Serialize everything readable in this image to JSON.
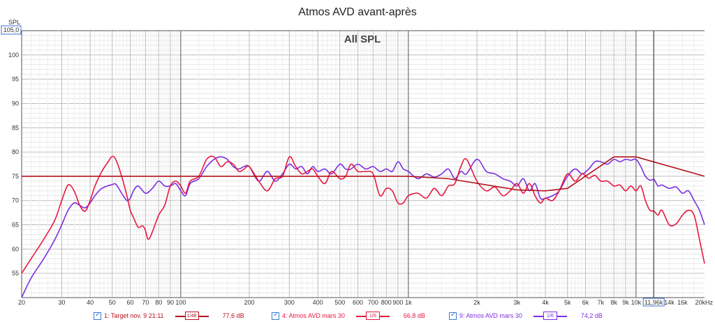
{
  "chart_data": {
    "type": "line",
    "title": "Atmos AVD avant-après",
    "subtitle": "All SPL",
    "ylabel": "SPL",
    "xunit": "Hz",
    "y_top_value": "105,0",
    "ylim": [
      50,
      105
    ],
    "xlim": [
      20,
      20000
    ],
    "xscale": "log",
    "grid": true,
    "cursor": {
      "x": 11960,
      "label": "11,96k"
    },
    "y_ticks": [
      {
        "v": 55,
        "label": "55"
      },
      {
        "v": 60,
        "label": "60"
      },
      {
        "v": 65,
        "label": "65"
      },
      {
        "v": 70,
        "label": "70"
      },
      {
        "v": 75,
        "label": "75"
      },
      {
        "v": 80,
        "label": "80"
      },
      {
        "v": 85,
        "label": "85"
      },
      {
        "v": 90,
        "label": "90"
      },
      {
        "v": 95,
        "label": "95"
      },
      {
        "v": 100,
        "label": "100"
      }
    ],
    "x_ticks": [
      {
        "v": 20,
        "label": "20"
      },
      {
        "v": 30,
        "label": "30"
      },
      {
        "v": 40,
        "label": "40"
      },
      {
        "v": 50,
        "label": "50"
      },
      {
        "v": 60,
        "label": "60"
      },
      {
        "v": 70,
        "label": "70"
      },
      {
        "v": 80,
        "label": "80"
      },
      {
        "v": 90,
        "label": "90"
      },
      {
        "v": 100,
        "label": "100"
      },
      {
        "v": 200,
        "label": "200"
      },
      {
        "v": 300,
        "label": "300"
      },
      {
        "v": 400,
        "label": "400"
      },
      {
        "v": 500,
        "label": "500"
      },
      {
        "v": 600,
        "label": "600"
      },
      {
        "v": 700,
        "label": "700"
      },
      {
        "v": 800,
        "label": "800"
      },
      {
        "v": 900,
        "label": "900"
      },
      {
        "v": 1000,
        "label": "1k"
      },
      {
        "v": 2000,
        "label": "2k"
      },
      {
        "v": 3000,
        "label": "3k"
      },
      {
        "v": 4000,
        "label": "4k"
      },
      {
        "v": 5000,
        "label": "5k"
      },
      {
        "v": 6000,
        "label": "6k"
      },
      {
        "v": 7000,
        "label": "7k"
      },
      {
        "v": 8000,
        "label": "8k"
      },
      {
        "v": 9000,
        "label": "9k"
      },
      {
        "v": 10000,
        "label": "10k"
      },
      {
        "v": 14000,
        "label": "14k"
      },
      {
        "v": 16000,
        "label": "16k"
      },
      {
        "v": 20000,
        "label": "20kHz"
      }
    ],
    "series": [
      {
        "name": "1: Target nov. 9 21:11",
        "smoothing": "1/48",
        "level": "77,6 dB",
        "color": "#b5121b",
        "x": [
          20,
          100,
          1000,
          1500,
          3000,
          4000,
          5000,
          8000,
          10000,
          20000
        ],
        "y": [
          75,
          75,
          75,
          74.5,
          72.2,
          72,
          72.5,
          79,
          79,
          75
        ]
      },
      {
        "name": "4: Atmos AVD mars 30",
        "smoothing": "1/6",
        "level": "66,8 dB",
        "color": "#e8173f",
        "x": [
          20,
          22,
          25,
          28,
          30,
          32,
          34,
          36,
          38,
          40,
          42,
          45,
          48,
          50,
          52,
          55,
          58,
          60,
          62,
          65,
          68,
          70,
          72,
          75,
          80,
          85,
          90,
          95,
          100,
          105,
          110,
          120,
          130,
          140,
          150,
          160,
          170,
          180,
          190,
          200,
          220,
          240,
          260,
          280,
          300,
          320,
          340,
          360,
          380,
          400,
          430,
          460,
          500,
          530,
          560,
          600,
          650,
          700,
          750,
          800,
          850,
          900,
          950,
          1000,
          1100,
          1200,
          1300,
          1400,
          1500,
          1600,
          1700,
          1800,
          2000,
          2200,
          2400,
          2600,
          2800,
          3000,
          3200,
          3400,
          3600,
          3800,
          4000,
          4300,
          4600,
          5000,
          5400,
          5800,
          6200,
          6600,
          7000,
          7500,
          8000,
          8500,
          9000,
          9500,
          10000,
          10500,
          11000,
          11500,
          12000,
          12500,
          13000,
          14000,
          15000,
          16000,
          17000,
          18000,
          19000,
          20000
        ],
        "y": [
          55,
          58,
          62,
          66,
          70,
          73.2,
          72,
          69,
          67.8,
          70,
          73,
          76,
          78,
          79.1,
          78.3,
          75,
          71,
          68,
          66.5,
          64.5,
          64.8,
          63.8,
          62,
          63.5,
          67,
          69,
          73,
          74,
          73,
          71.5,
          74,
          75,
          78.5,
          79,
          77,
          78,
          77.5,
          76,
          76.5,
          77,
          74,
          72,
          74.5,
          75,
          79,
          77,
          75.5,
          76,
          76.5,
          75,
          73.5,
          76,
          74.5,
          75,
          77.5,
          76,
          76,
          75.5,
          71,
          72.5,
          72,
          69.5,
          69.5,
          71,
          71.5,
          70.5,
          72.5,
          71,
          73,
          73.5,
          77,
          78.5,
          74,
          72,
          72.8,
          71,
          72,
          73.5,
          71.5,
          73.5,
          71,
          69.5,
          70.5,
          70,
          72,
          75.5,
          74,
          75.5,
          74.6,
          75.2,
          74,
          74,
          73,
          73.2,
          72,
          73,
          72,
          73,
          70,
          68,
          67.8,
          67,
          68,
          65,
          65.2,
          67,
          68,
          67,
          62,
          57
        ]
      },
      {
        "name": "9: Atmos AVD mars 30",
        "smoothing": "1/6",
        "level": "74,2 dB",
        "color": "#7b2fe0",
        "x": [
          20,
          22,
          25,
          28,
          30,
          32,
          34,
          36,
          38,
          40,
          42,
          45,
          50,
          52,
          55,
          58,
          60,
          62,
          65,
          70,
          75,
          80,
          85,
          90,
          95,
          100,
          105,
          110,
          120,
          130,
          140,
          150,
          160,
          170,
          180,
          190,
          200,
          220,
          240,
          260,
          280,
          300,
          320,
          340,
          360,
          380,
          400,
          430,
          460,
          500,
          530,
          560,
          600,
          650,
          700,
          750,
          800,
          850,
          900,
          950,
          1000,
          1100,
          1200,
          1300,
          1400,
          1500,
          1600,
          1700,
          1800,
          2000,
          2200,
          2400,
          2600,
          2800,
          3000,
          3200,
          3400,
          3600,
          3800,
          4000,
          4300,
          4600,
          5000,
          5400,
          5800,
          6200,
          6600,
          7000,
          7500,
          8000,
          8500,
          9000,
          9500,
          10000,
          10500,
          11000,
          11500,
          12000,
          12500,
          13000,
          14000,
          15000,
          16000,
          17000,
          18000,
          19000,
          20000
        ],
        "y": [
          50,
          54,
          58,
          62,
          65,
          68,
          69.5,
          69,
          68.5,
          69.5,
          71,
          72.5,
          73.3,
          73.3,
          71.5,
          70,
          70.5,
          72,
          73,
          71.5,
          72.5,
          74,
          73,
          73,
          73.5,
          72,
          71,
          73.5,
          74.5,
          77,
          78.5,
          79,
          78.5,
          77,
          76.5,
          77,
          77,
          74,
          76,
          74,
          75.5,
          77.5,
          76.5,
          77,
          75.5,
          77,
          76,
          76.5,
          75.5,
          77.5,
          76.5,
          76.5,
          77.5,
          76.5,
          77,
          76,
          76.5,
          76,
          78,
          76.5,
          76,
          74.5,
          75.5,
          74.8,
          75.5,
          76.5,
          74.5,
          76,
          75.5,
          78.5,
          76,
          75.5,
          74.5,
          74,
          73,
          74.5,
          72,
          73.5,
          70.5,
          70.5,
          71,
          72,
          75,
          76.5,
          75.5,
          76.5,
          78,
          78,
          77.5,
          78.5,
          78,
          78.5,
          78.3,
          78.5,
          77,
          75,
          74.2,
          74.3,
          73,
          73.2,
          72.5,
          72.8,
          71.5,
          72,
          70,
          68,
          65
        ]
      }
    ]
  }
}
